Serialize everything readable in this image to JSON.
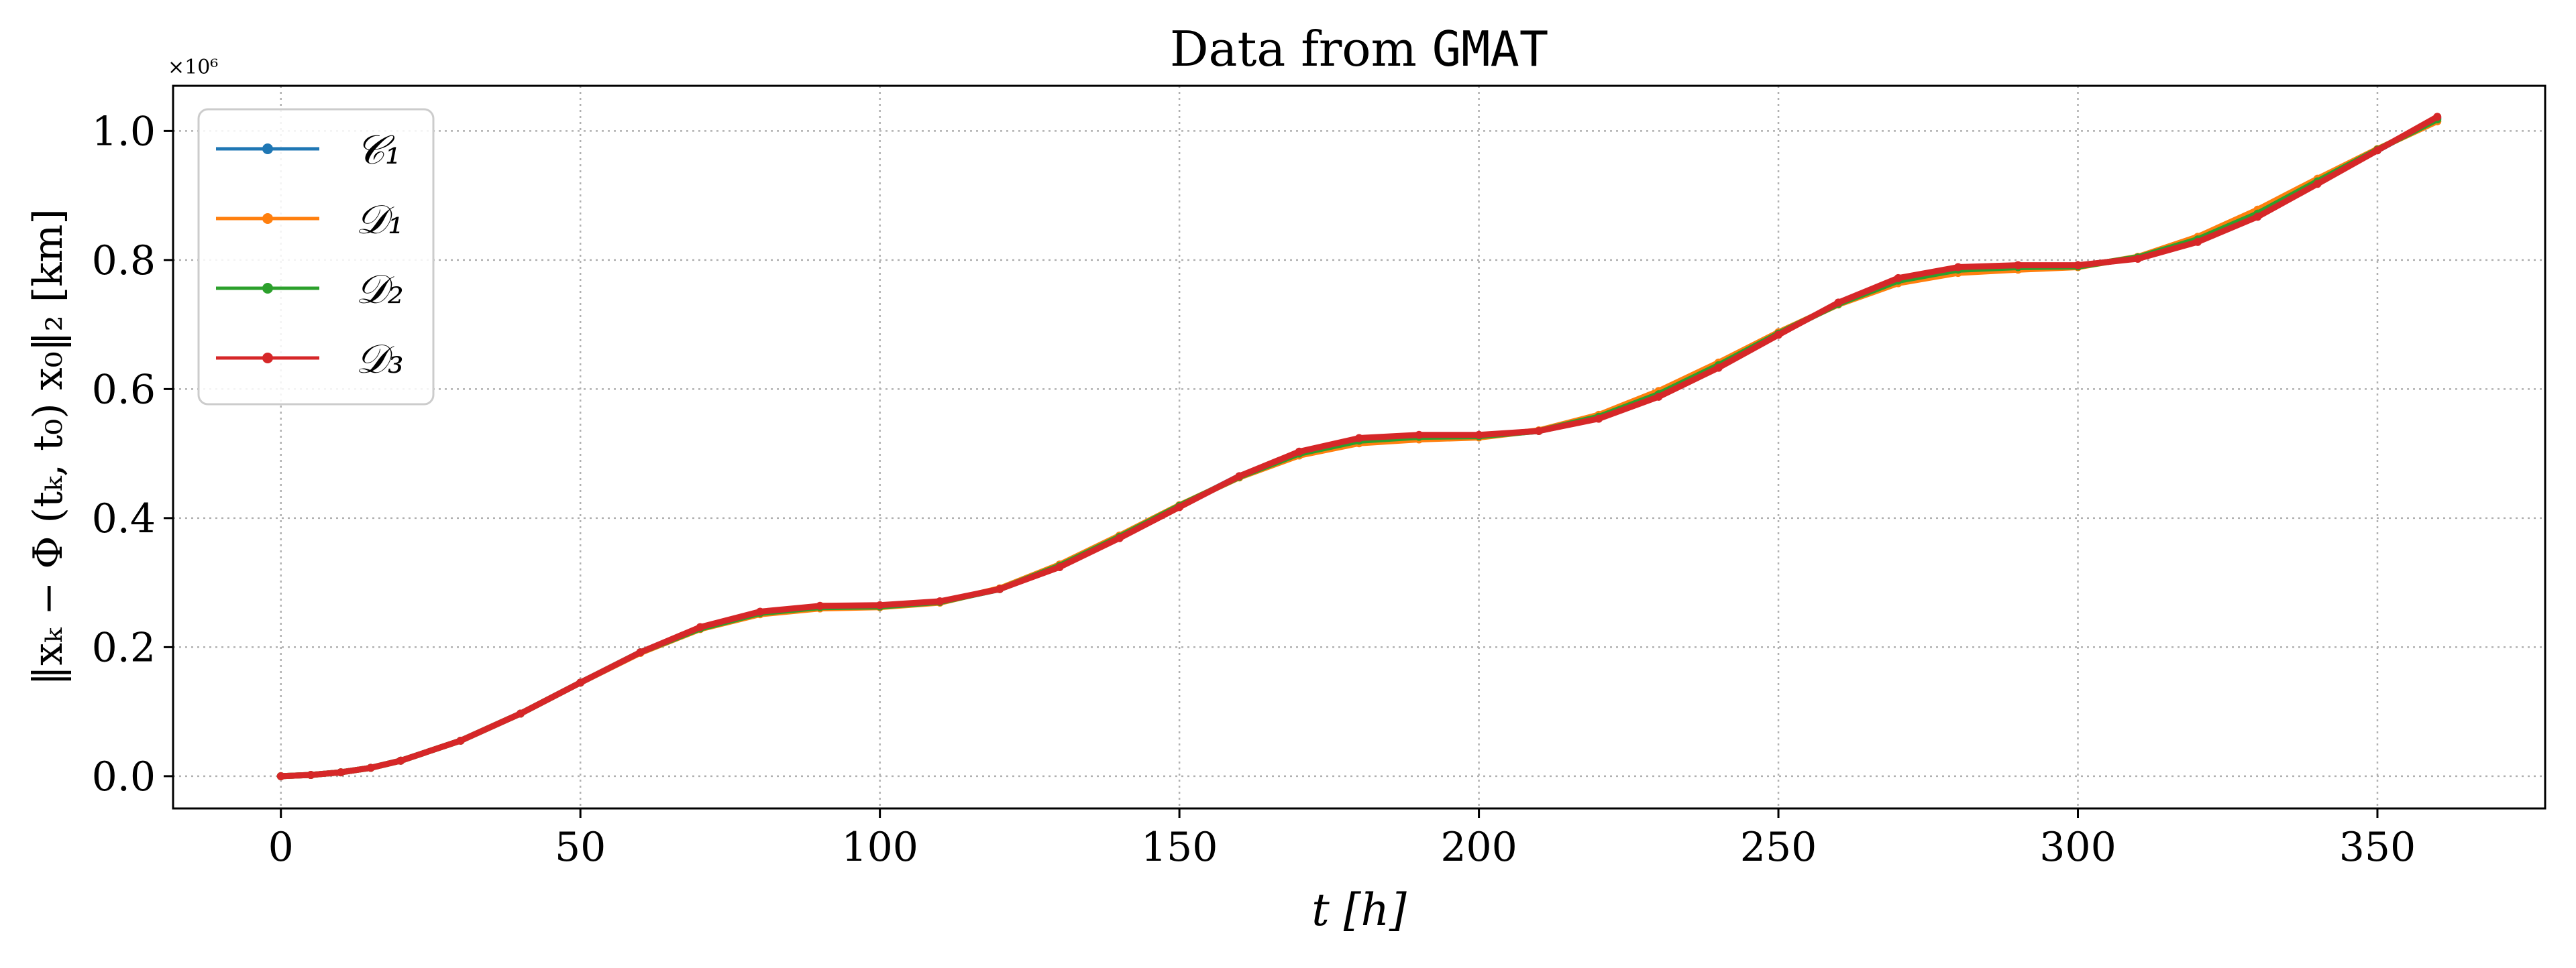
{
  "chart_data": {
    "type": "line",
    "title": "Data from GMAT",
    "title_parts": {
      "prefix": "Data from ",
      "code": "GMAT"
    },
    "xlabel": "t [h]",
    "ylabel": "‖xₖ − Φ (tₖ, t₀) x₀‖₂ [km]",
    "y_multiplier_label": "×10⁶",
    "xlim": [
      -18,
      378
    ],
    "ylim": [
      -0.05,
      1.07
    ],
    "xticks": [
      0,
      50,
      100,
      150,
      200,
      250,
      300,
      350
    ],
    "xtick_labels": [
      "0",
      "50",
      "100",
      "150",
      "200",
      "250",
      "300",
      "350"
    ],
    "yticks": [
      0.0,
      0.2,
      0.4,
      0.6,
      0.8,
      1.0
    ],
    "ytick_labels": [
      "0.0",
      "0.2",
      "0.4",
      "0.6",
      "0.8",
      "1.0"
    ],
    "grid": true,
    "legend_position": "top-left",
    "series": [
      {
        "name": "𝒞₁",
        "color": "#1f77b4",
        "x": [
          0,
          5,
          10,
          15,
          20,
          30,
          40,
          50,
          60,
          70,
          80,
          90,
          100,
          110,
          120,
          130,
          140,
          150,
          160,
          170,
          180,
          190,
          200,
          210,
          220,
          230,
          240,
          250,
          260,
          270,
          280,
          290,
          300,
          310,
          320,
          330,
          340,
          350,
          360
        ],
        "y": [
          0.0,
          0.002,
          0.006,
          0.013,
          0.024,
          0.055,
          0.097,
          0.145,
          0.192,
          0.23,
          0.254,
          0.263,
          0.264,
          0.27,
          0.29,
          0.325,
          0.37,
          0.418,
          0.465,
          0.502,
          0.522,
          0.527,
          0.528,
          0.535,
          0.555,
          0.59,
          0.635,
          0.685,
          0.733,
          0.77,
          0.787,
          0.79,
          0.791,
          0.803,
          0.83,
          0.87,
          0.92,
          0.97,
          1.02
        ]
      },
      {
        "name": "𝒟₁",
        "color": "#ff7f0e",
        "x": [
          0,
          5,
          10,
          15,
          20,
          30,
          40,
          50,
          60,
          70,
          80,
          90,
          100,
          110,
          120,
          130,
          140,
          150,
          160,
          170,
          180,
          190,
          200,
          210,
          220,
          230,
          240,
          250,
          260,
          270,
          280,
          290,
          300,
          310,
          320,
          330,
          340,
          350,
          360
        ],
        "y": [
          0.0,
          0.002,
          0.006,
          0.013,
          0.024,
          0.055,
          0.097,
          0.145,
          0.191,
          0.228,
          0.251,
          0.26,
          0.262,
          0.269,
          0.291,
          0.328,
          0.373,
          0.42,
          0.463,
          0.497,
          0.516,
          0.522,
          0.525,
          0.536,
          0.56,
          0.597,
          0.641,
          0.688,
          0.731,
          0.764,
          0.78,
          0.785,
          0.789,
          0.805,
          0.836,
          0.878,
          0.926,
          0.972,
          1.015
        ]
      },
      {
        "name": "𝒟₂",
        "color": "#2ca02c",
        "x": [
          0,
          5,
          10,
          15,
          20,
          30,
          40,
          50,
          60,
          70,
          80,
          90,
          100,
          110,
          120,
          130,
          140,
          150,
          160,
          170,
          180,
          190,
          200,
          210,
          220,
          230,
          240,
          250,
          260,
          270,
          280,
          290,
          300,
          310,
          320,
          330,
          340,
          350,
          360
        ],
        "y": [
          0.0,
          0.002,
          0.006,
          0.013,
          0.024,
          0.055,
          0.097,
          0.145,
          0.192,
          0.229,
          0.253,
          0.262,
          0.263,
          0.27,
          0.29,
          0.326,
          0.371,
          0.419,
          0.464,
          0.5,
          0.52,
          0.526,
          0.527,
          0.535,
          0.557,
          0.592,
          0.637,
          0.686,
          0.732,
          0.768,
          0.785,
          0.789,
          0.79,
          0.804,
          0.832,
          0.872,
          0.922,
          0.971,
          1.018
        ]
      },
      {
        "name": "𝒟₃",
        "color": "#d62728",
        "x": [
          0,
          5,
          10,
          15,
          20,
          30,
          40,
          50,
          60,
          70,
          80,
          90,
          100,
          110,
          120,
          130,
          140,
          150,
          160,
          170,
          180,
          190,
          200,
          210,
          220,
          230,
          240,
          250,
          260,
          270,
          280,
          290,
          300,
          310,
          320,
          330,
          340,
          350,
          360
        ],
        "y": [
          0.0,
          0.002,
          0.006,
          0.013,
          0.024,
          0.055,
          0.097,
          0.145,
          0.192,
          0.231,
          0.255,
          0.264,
          0.265,
          0.271,
          0.29,
          0.324,
          0.369,
          0.417,
          0.465,
          0.503,
          0.524,
          0.529,
          0.529,
          0.535,
          0.554,
          0.588,
          0.633,
          0.684,
          0.734,
          0.772,
          0.789,
          0.792,
          0.792,
          0.802,
          0.828,
          0.867,
          0.918,
          0.97,
          1.022
        ]
      }
    ]
  }
}
